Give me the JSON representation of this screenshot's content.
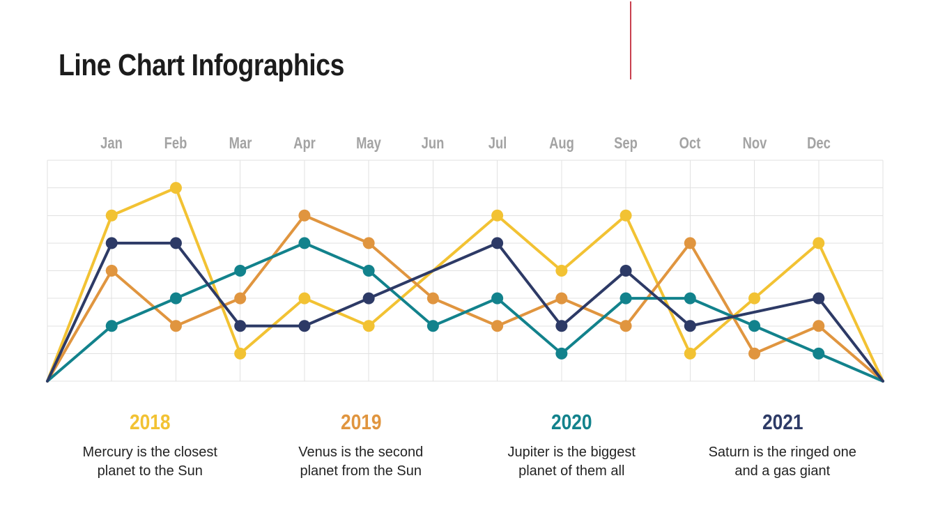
{
  "title": "Line Chart Infographics",
  "colors": {
    "background": "#FFFFFF",
    "title_text": "#1C1C1C",
    "month_label": "#A3A3A3",
    "grid": "#E1E1E1",
    "red_marker": "#C9414F",
    "yellow": "#F2C233",
    "orange": "#E0953F",
    "teal": "#12828C",
    "navy": "#2D3A66",
    "description_text": "#232323"
  },
  "chart_data": {
    "type": "line",
    "categories": [
      "Jan",
      "Feb",
      "Mar",
      "Apr",
      "May",
      "Jun",
      "Jul",
      "Aug",
      "Sep",
      "Oct",
      "Nov",
      "Dec"
    ],
    "series": [
      {
        "name": "2018",
        "color": "#F2C233",
        "values": [
          6,
          7,
          1,
          3,
          2,
          null,
          6,
          4,
          6,
          1,
          3,
          5
        ]
      },
      {
        "name": "2019",
        "color": "#E0953F",
        "values": [
          4,
          2,
          3,
          6,
          5,
          3,
          2,
          3,
          2,
          5,
          1,
          2
        ]
      },
      {
        "name": "2020",
        "color": "#12828C",
        "values": [
          2,
          3,
          4,
          5,
          4,
          2,
          3,
          1,
          3,
          3,
          2,
          1
        ]
      },
      {
        "name": "2021",
        "color": "#2D3A66",
        "values": [
          5,
          5,
          2,
          2,
          3,
          null,
          5,
          2,
          4,
          2,
          null,
          3
        ]
      }
    ],
    "ylim": [
      0,
      8
    ],
    "grid": true,
    "markers": true,
    "start_end_anchor_value": 0,
    "legend_position": "bottom"
  },
  "legend": [
    {
      "year": "2018",
      "color": "#F2C233",
      "text": "Mercury is the closest\nplanet to the Sun"
    },
    {
      "year": "2019",
      "color": "#E0953F",
      "text": "Venus is the second\nplanet from the Sun"
    },
    {
      "year": "2020",
      "color": "#12828C",
      "text": "Jupiter is the biggest\nplanet of them all"
    },
    {
      "year": "2021",
      "color": "#2D3A66",
      "text": "Saturn is the ringed one\nand a gas giant"
    }
  ]
}
